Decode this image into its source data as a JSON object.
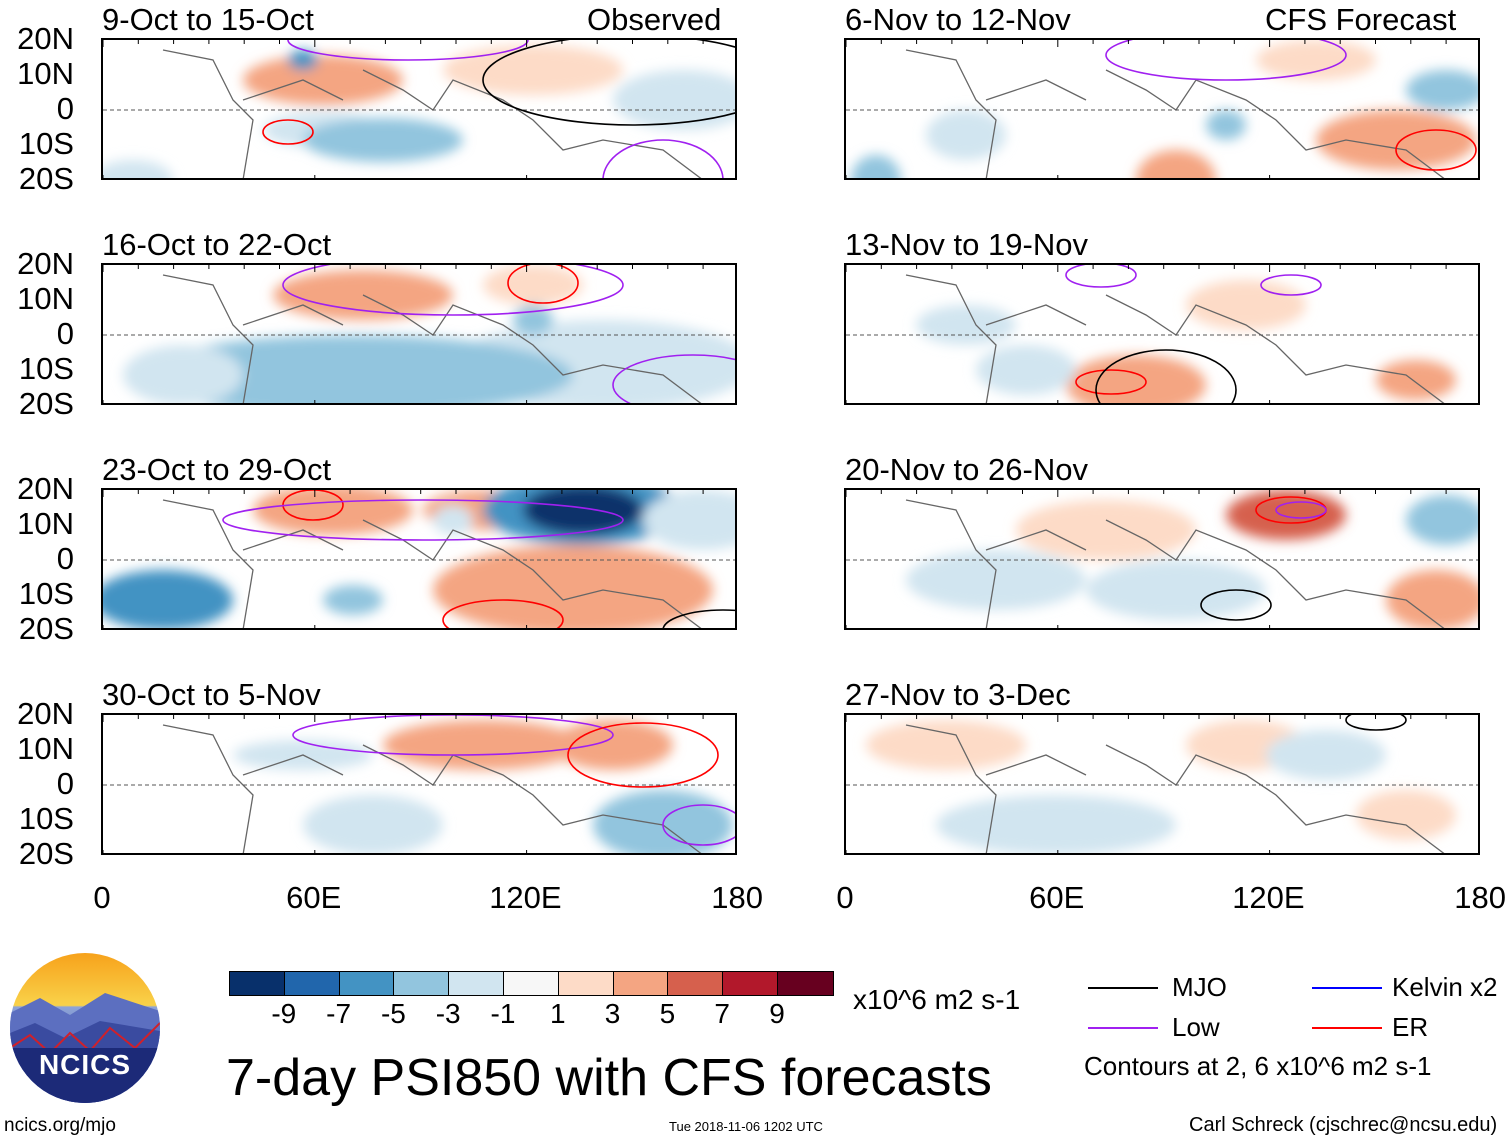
{
  "header": {
    "observed_label": "Observed",
    "forecast_label": "CFS Forecast"
  },
  "lat_labels": [
    "20N",
    "10N",
    "0",
    "10S",
    "20S"
  ],
  "lon_labels": [
    "0",
    "60E",
    "120E",
    "180"
  ],
  "panels_left": [
    {
      "title": "9-Oct to 15-Oct"
    },
    {
      "title": "16-Oct to 22-Oct"
    },
    {
      "title": "23-Oct to 29-Oct"
    },
    {
      "title": "30-Oct to 5-Nov"
    }
  ],
  "panels_right": [
    {
      "title": "6-Nov to 12-Nov"
    },
    {
      "title": "13-Nov to 19-Nov"
    },
    {
      "title": "20-Nov to 26-Nov"
    },
    {
      "title": "27-Nov to 3-Dec"
    }
  ],
  "colorbar": {
    "colors": [
      "#08306b",
      "#2166ac",
      "#4393c3",
      "#92c5de",
      "#d1e5f0",
      "#f7f7f7",
      "#fddbc7",
      "#f4a582",
      "#d6604d",
      "#b2182b",
      "#67001f"
    ],
    "labels": [
      "-9",
      "-7",
      "-5",
      "-3",
      "-1",
      "1",
      "3",
      "5",
      "7",
      "9"
    ],
    "units": "x10^6 m2 s-1"
  },
  "legend": {
    "items": [
      {
        "label": "MJO",
        "color": "#000000"
      },
      {
        "label": "Kelvin x2",
        "color": "#0000ff"
      },
      {
        "label": "Low",
        "color": "#a020f0"
      },
      {
        "label": "ER",
        "color": "#ff0000"
      }
    ],
    "contours_note": "Contours at 2, 6 x10^6 m2 s-1"
  },
  "main_title": "7-day PSI850 with CFS forecasts",
  "logo_text": "NCICS",
  "footer": {
    "url": "ncics.org/mjo",
    "timestamp": "Tue 2018-11-06 1202 UTC",
    "author": "Carl Schreck (cjschrec@ncsu.edu)"
  }
}
